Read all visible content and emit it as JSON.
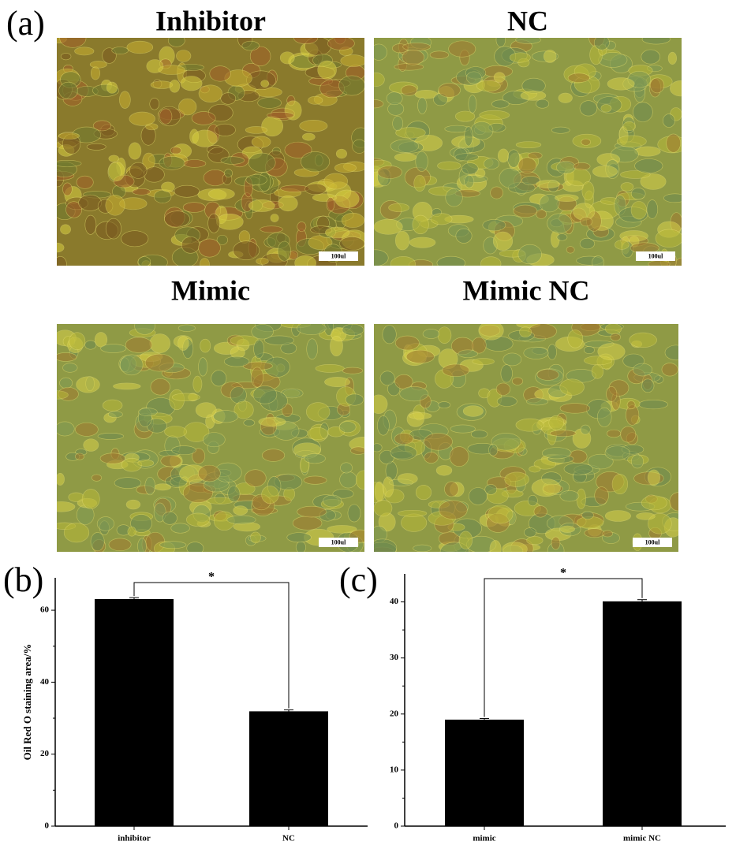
{
  "panel_labels": [
    "(a)",
    "(b)",
    "(c)"
  ],
  "micrographs": [
    {
      "title": "Inhibitor",
      "scale_bar": "100ul"
    },
    {
      "title": "NC",
      "scale_bar": "100ul"
    },
    {
      "title": "Mimic",
      "scale_bar": "100ul"
    },
    {
      "title": "Mimic NC",
      "scale_bar": "100ul"
    }
  ],
  "chart_data": [
    {
      "type": "bar",
      "ylabel": "Oil Red O staining area/%",
      "categories": [
        "inhibitor",
        "NC"
      ],
      "values": [
        63.1,
        31.9
      ],
      "errors": [
        0.4,
        0.4
      ],
      "color": "#000000",
      "ylim": [
        0,
        69
      ],
      "yticks": [
        0,
        20,
        40,
        60
      ],
      "significance": "*"
    },
    {
      "type": "bar",
      "categories": [
        "mimic",
        "mimic NC"
      ],
      "values": [
        19,
        40.1
      ],
      "errors": [
        0.2,
        0.3
      ],
      "color": "#000000",
      "ylim": [
        0,
        45
      ],
      "yticks": [
        0,
        10,
        20,
        30,
        40
      ],
      "significance": "*"
    }
  ]
}
